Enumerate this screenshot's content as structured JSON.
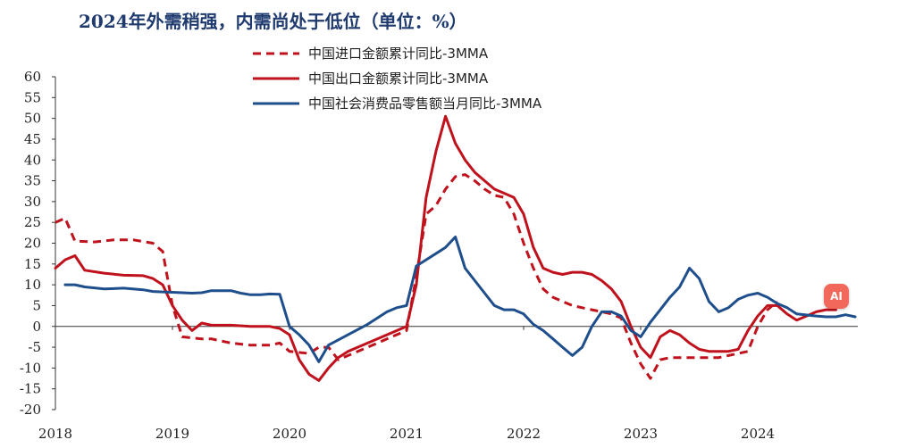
{
  "chart_data": {
    "type": "line",
    "title": "2024年外需稍强，内需尚处于低位（单位：%）",
    "ylim": [
      -20,
      60
    ],
    "yticks": [
      -20,
      -15,
      -10,
      -5,
      0,
      5,
      10,
      15,
      20,
      25,
      30,
      35,
      40,
      45,
      50,
      55,
      60
    ],
    "xlim": [
      2018.0,
      2024.85
    ],
    "xticks": [
      2018,
      2019,
      2020,
      2021,
      2022,
      2023,
      2024
    ],
    "legend_position": "top-center",
    "grid": false,
    "series": [
      {
        "name": "中国进口金额累计同比-3MMA",
        "style": "dashed",
        "color": "#c0121c",
        "points": [
          [
            2018.0,
            25
          ],
          [
            2018.083,
            26
          ],
          [
            2018.167,
            20.5
          ],
          [
            2018.333,
            20.3
          ],
          [
            2018.5,
            20.8
          ],
          [
            2018.667,
            20.8
          ],
          [
            2018.833,
            20
          ],
          [
            2018.917,
            18
          ],
          [
            2019.0,
            5
          ],
          [
            2019.083,
            -2.5
          ],
          [
            2019.25,
            -3
          ],
          [
            2019.333,
            -3
          ],
          [
            2019.5,
            -4
          ],
          [
            2019.667,
            -4.5
          ],
          [
            2019.833,
            -4.5
          ],
          [
            2019.917,
            -4
          ],
          [
            2020.0,
            -6
          ],
          [
            2020.167,
            -6.5
          ],
          [
            2020.25,
            -5
          ],
          [
            2020.333,
            -5
          ],
          [
            2020.417,
            -8
          ],
          [
            2020.5,
            -7
          ],
          [
            2020.667,
            -5
          ],
          [
            2020.833,
            -3
          ],
          [
            2021.0,
            -1
          ],
          [
            2021.083,
            12
          ],
          [
            2021.167,
            27
          ],
          [
            2021.25,
            29
          ],
          [
            2021.333,
            33
          ],
          [
            2021.417,
            36
          ],
          [
            2021.5,
            36.5
          ],
          [
            2021.583,
            35
          ],
          [
            2021.667,
            33
          ],
          [
            2021.75,
            31.5
          ],
          [
            2021.833,
            31
          ],
          [
            2021.917,
            27
          ],
          [
            2022.0,
            20
          ],
          [
            2022.083,
            14
          ],
          [
            2022.167,
            9
          ],
          [
            2022.25,
            7
          ],
          [
            2022.333,
            6
          ],
          [
            2022.417,
            5
          ],
          [
            2022.5,
            4.5
          ],
          [
            2022.583,
            4
          ],
          [
            2022.667,
            3.5
          ],
          [
            2022.75,
            3
          ],
          [
            2022.833,
            2
          ],
          [
            2022.917,
            -4
          ],
          [
            2023.0,
            -9
          ],
          [
            2023.083,
            -12.5
          ],
          [
            2023.167,
            -8
          ],
          [
            2023.25,
            -7.5
          ],
          [
            2023.333,
            -7.5
          ],
          [
            2023.5,
            -7.5
          ],
          [
            2023.583,
            -7.5
          ],
          [
            2023.667,
            -7.5
          ],
          [
            2023.75,
            -7
          ],
          [
            2023.833,
            -6.5
          ],
          [
            2023.917,
            -6
          ],
          [
            2024.0,
            0
          ],
          [
            2024.083,
            4
          ],
          [
            2024.167,
            6
          ]
        ]
      },
      {
        "name": "中国出口金额累计同比-3MMA",
        "style": "solid",
        "color": "#c0121c",
        "points": [
          [
            2018.0,
            14
          ],
          [
            2018.083,
            16
          ],
          [
            2018.167,
            17
          ],
          [
            2018.25,
            13.5
          ],
          [
            2018.417,
            12.8
          ],
          [
            2018.583,
            12.3
          ],
          [
            2018.75,
            12.2
          ],
          [
            2018.833,
            11.5
          ],
          [
            2018.917,
            10
          ],
          [
            2019.0,
            5
          ],
          [
            2019.083,
            1.5
          ],
          [
            2019.167,
            -1
          ],
          [
            2019.25,
            0.8
          ],
          [
            2019.333,
            0.3
          ],
          [
            2019.5,
            0.3
          ],
          [
            2019.667,
            0
          ],
          [
            2019.833,
            0
          ],
          [
            2019.917,
            -0.5
          ],
          [
            2020.0,
            -2
          ],
          [
            2020.083,
            -8
          ],
          [
            2020.167,
            -11.5
          ],
          [
            2020.25,
            -13
          ],
          [
            2020.333,
            -10
          ],
          [
            2020.417,
            -7.5
          ],
          [
            2020.5,
            -6
          ],
          [
            2020.667,
            -4
          ],
          [
            2020.833,
            -2
          ],
          [
            2021.0,
            0
          ],
          [
            2021.083,
            10
          ],
          [
            2021.167,
            31
          ],
          [
            2021.25,
            42
          ],
          [
            2021.333,
            50.5
          ],
          [
            2021.417,
            44
          ],
          [
            2021.5,
            40
          ],
          [
            2021.583,
            37
          ],
          [
            2021.667,
            35
          ],
          [
            2021.75,
            33
          ],
          [
            2021.833,
            32
          ],
          [
            2021.917,
            31
          ],
          [
            2022.0,
            27
          ],
          [
            2022.083,
            19
          ],
          [
            2022.167,
            14
          ],
          [
            2022.25,
            13
          ],
          [
            2022.333,
            12.5
          ],
          [
            2022.417,
            13
          ],
          [
            2022.5,
            13
          ],
          [
            2022.583,
            12.5
          ],
          [
            2022.667,
            11
          ],
          [
            2022.75,
            9
          ],
          [
            2022.833,
            6
          ],
          [
            2022.917,
            0
          ],
          [
            2023.0,
            -5
          ],
          [
            2023.083,
            -7.5
          ],
          [
            2023.167,
            -2.5
          ],
          [
            2023.25,
            -1
          ],
          [
            2023.333,
            -2
          ],
          [
            2023.417,
            -4
          ],
          [
            2023.5,
            -5.5
          ],
          [
            2023.583,
            -6
          ],
          [
            2023.667,
            -6
          ],
          [
            2023.75,
            -6
          ],
          [
            2023.833,
            -5.5
          ],
          [
            2023.917,
            -1
          ],
          [
            2024.0,
            2.5
          ],
          [
            2024.083,
            5
          ],
          [
            2024.167,
            5
          ],
          [
            2024.25,
            3
          ],
          [
            2024.333,
            1.5
          ],
          [
            2024.417,
            2.5
          ],
          [
            2024.5,
            3.5
          ],
          [
            2024.583,
            4
          ],
          [
            2024.667,
            4
          ]
        ]
      },
      {
        "name": "中国社会消费品零售额当月同比-3MMA",
        "style": "solid",
        "color": "#1f4e8c",
        "points": [
          [
            2018.083,
            10
          ],
          [
            2018.167,
            10
          ],
          [
            2018.25,
            9.5
          ],
          [
            2018.417,
            9
          ],
          [
            2018.583,
            9.2
          ],
          [
            2018.75,
            8.8
          ],
          [
            2018.833,
            8.4
          ],
          [
            2018.917,
            8.3
          ],
          [
            2019.0,
            8.2
          ],
          [
            2019.167,
            8
          ],
          [
            2019.25,
            8.1
          ],
          [
            2019.333,
            8.6
          ],
          [
            2019.5,
            8.6
          ],
          [
            2019.583,
            8
          ],
          [
            2019.667,
            7.6
          ],
          [
            2019.75,
            7.6
          ],
          [
            2019.833,
            7.8
          ],
          [
            2019.917,
            7.7
          ],
          [
            2020.0,
            0
          ],
          [
            2020.083,
            -2
          ],
          [
            2020.167,
            -4.5
          ],
          [
            2020.25,
            -8.5
          ],
          [
            2020.333,
            -4.5
          ],
          [
            2020.5,
            -2
          ],
          [
            2020.667,
            0.5
          ],
          [
            2020.833,
            3.5
          ],
          [
            2020.917,
            4.5
          ],
          [
            2021.0,
            5
          ],
          [
            2021.083,
            14.5
          ],
          [
            2021.167,
            16
          ],
          [
            2021.25,
            17.5
          ],
          [
            2021.333,
            19
          ],
          [
            2021.417,
            21.5
          ],
          [
            2021.5,
            14
          ],
          [
            2021.583,
            11
          ],
          [
            2021.667,
            8
          ],
          [
            2021.75,
            5
          ],
          [
            2021.833,
            4
          ],
          [
            2021.917,
            4
          ],
          [
            2022.0,
            3
          ],
          [
            2022.083,
            0.5
          ],
          [
            2022.167,
            -1
          ],
          [
            2022.25,
            -3
          ],
          [
            2022.333,
            -5
          ],
          [
            2022.417,
            -7
          ],
          [
            2022.5,
            -5
          ],
          [
            2022.583,
            0
          ],
          [
            2022.667,
            3.5
          ],
          [
            2022.75,
            3.5
          ],
          [
            2022.833,
            2.5
          ],
          [
            2022.917,
            -1
          ],
          [
            2023.0,
            -2.5
          ],
          [
            2023.083,
            1
          ],
          [
            2023.167,
            4
          ],
          [
            2023.25,
            7
          ],
          [
            2023.333,
            9.5
          ],
          [
            2023.417,
            14
          ],
          [
            2023.5,
            11.5
          ],
          [
            2023.583,
            6
          ],
          [
            2023.667,
            3.5
          ],
          [
            2023.75,
            4.5
          ],
          [
            2023.833,
            6.5
          ],
          [
            2023.917,
            7.5
          ],
          [
            2024.0,
            8
          ],
          [
            2024.083,
            7
          ],
          [
            2024.167,
            5.5
          ],
          [
            2024.25,
            4.5
          ],
          [
            2024.333,
            3
          ],
          [
            2024.5,
            2.5
          ],
          [
            2024.583,
            2.3
          ],
          [
            2024.667,
            2.3
          ],
          [
            2024.75,
            2.8
          ],
          [
            2024.833,
            2.3
          ]
        ]
      }
    ]
  }
}
